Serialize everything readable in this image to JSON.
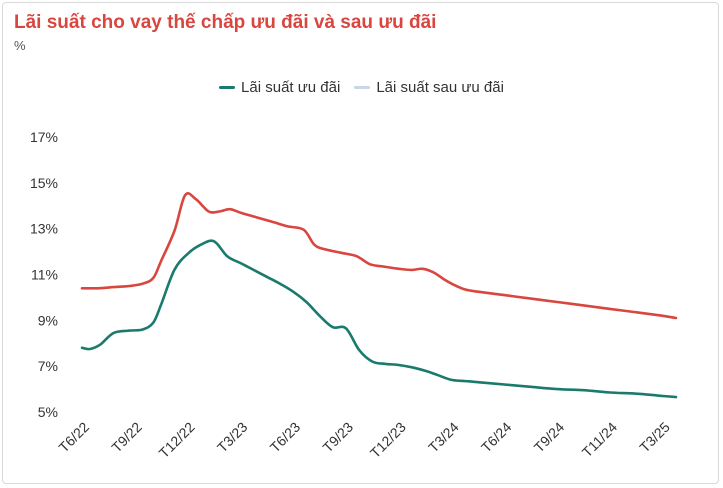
{
  "chart_data": {
    "type": "line",
    "title": "Lãi suất cho vay thế chấp ưu đãi và sau ưu đãi",
    "subtitle": "%",
    "xlabel": "",
    "ylabel": "",
    "ylim": [
      5,
      17
    ],
    "y_ticks": [
      "5%",
      "7%",
      "9%",
      "11%",
      "13%",
      "15%",
      "17%"
    ],
    "y_tick_values": [
      5,
      7,
      9,
      11,
      13,
      15,
      17
    ],
    "x_tick_labels": [
      "T6/22",
      "T9/22",
      "T12/22",
      "T3/23",
      "T6/23",
      "T9/23",
      "T12/23",
      "T3/24",
      "T6/24",
      "T9/24",
      "T11/24",
      "T3/25"
    ],
    "legend_position": "top",
    "grid": false,
    "series": [
      {
        "name": "Lãi suất ưu đãi",
        "color": "#1a7a6c",
        "x": [
          0,
          0.15,
          0.35,
          0.6,
          0.9,
          1.15,
          1.35,
          1.5,
          1.75,
          2.0,
          2.25,
          2.5,
          2.75,
          3.0,
          3.25,
          3.5,
          3.75,
          4.0,
          4.25,
          4.5,
          4.75,
          5.0,
          5.25,
          5.5,
          5.75,
          6.0,
          6.25,
          6.5,
          6.75,
          7.0,
          7.25,
          7.5,
          8.0,
          8.5,
          9.0,
          9.5,
          10.0,
          10.5,
          11.0,
          11.25
        ],
        "values": [
          7.8,
          7.75,
          7.95,
          8.45,
          8.55,
          8.6,
          8.9,
          9.7,
          11.2,
          11.9,
          12.3,
          12.45,
          11.8,
          11.5,
          11.2,
          10.9,
          10.6,
          10.25,
          9.8,
          9.2,
          8.7,
          8.65,
          7.7,
          7.2,
          7.1,
          7.05,
          6.95,
          6.8,
          6.6,
          6.4,
          6.35,
          6.3,
          6.2,
          6.1,
          6.0,
          5.95,
          5.85,
          5.8,
          5.7,
          5.65
        ]
      },
      {
        "name": "Lãi suất sau ưu đãi",
        "color": "#d9463f",
        "x": [
          0,
          0.3,
          0.6,
          0.9,
          1.15,
          1.35,
          1.5,
          1.75,
          1.95,
          2.15,
          2.4,
          2.6,
          2.8,
          3.0,
          3.3,
          3.6,
          3.9,
          4.2,
          4.4,
          4.6,
          4.9,
          5.2,
          5.45,
          5.7,
          6.0,
          6.25,
          6.45,
          6.65,
          6.85,
          7.0,
          7.25,
          7.5,
          8.0,
          8.5,
          9.0,
          9.5,
          10.0,
          10.5,
          11.0,
          11.25
        ],
        "values": [
          10.4,
          10.4,
          10.45,
          10.5,
          10.6,
          10.85,
          11.6,
          12.9,
          14.45,
          14.3,
          13.75,
          13.75,
          13.85,
          13.7,
          13.5,
          13.3,
          13.1,
          12.95,
          12.3,
          12.1,
          11.95,
          11.8,
          11.45,
          11.35,
          11.25,
          11.2,
          11.25,
          11.1,
          10.8,
          10.6,
          10.35,
          10.25,
          10.1,
          9.95,
          9.8,
          9.65,
          9.5,
          9.35,
          9.2,
          9.1
        ]
      }
    ]
  }
}
